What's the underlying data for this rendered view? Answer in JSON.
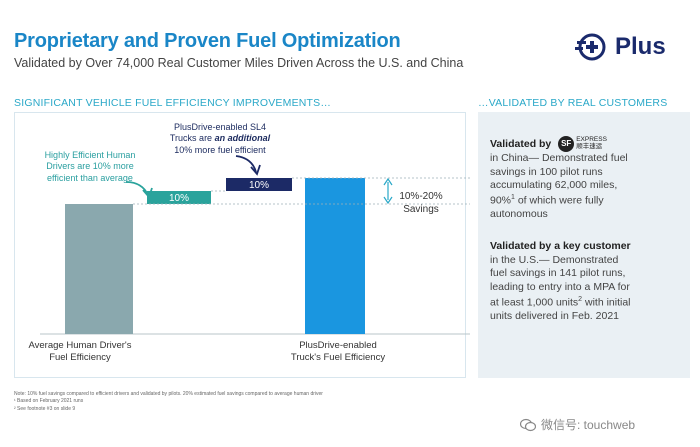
{
  "header": {
    "title": "Proprietary and Proven Fuel Optimization",
    "subtitle": "Validated by Over 74,000 Real Customer Miles Driven Across the U.S. and China",
    "logo_text": "Plus"
  },
  "sections": {
    "left": "SIGNIFICANT VEHICLE FUEL EFFICIENCY IMPROVEMENTS…",
    "right": "…VALIDATED BY REAL CUSTOMERS"
  },
  "chart_data": {
    "type": "bar",
    "title": "",
    "xlabel": "",
    "ylabel": "",
    "categories": [
      "Average Human Driver's Fuel Efficiency",
      "Highly Efficient Human Drivers",
      "PlusDrive-enabled SL4 Trucks",
      "PlusDrive-enabled Truck's Fuel Efficiency"
    ],
    "bars": [
      {
        "kind": "base",
        "start": 0,
        "end": 100,
        "label": "",
        "color": "#8aa8ae"
      },
      {
        "kind": "increment",
        "start": 100,
        "end": 110,
        "label": "10%",
        "color": "#2aa39c"
      },
      {
        "kind": "increment",
        "start": 110,
        "end": 120,
        "label": "10%",
        "color": "#1c2a66"
      },
      {
        "kind": "total",
        "start": 0,
        "end": 120,
        "label": "",
        "color": "#1a96e0"
      }
    ],
    "savings_range": "10%-20%",
    "savings_label": "Savings",
    "bar_labels": {
      "avg_line1": "Average Human Driver's",
      "avg_line2": "Fuel Efficiency",
      "plus_line1": "PlusDrive-enabled",
      "plus_line2": "Truck's Fuel Efficiency"
    },
    "annotations": {
      "human_line1": "Highly Efficient Human",
      "human_line2": "Drivers are 10% more",
      "human_line3": "efficient than average",
      "sl4_line1": "PlusDrive-enabled SL4",
      "sl4_line2a": "Trucks are ",
      "sl4_line2b": "an additional",
      "sl4_line3": "10% more fuel efficient"
    },
    "ylim": [
      0,
      130
    ],
    "grid": false
  },
  "validation": {
    "block1": {
      "heading": "Validated by",
      "sf_letters": "SF",
      "sf_en": "EXPRESS",
      "sf_cn": "顺丰速运",
      "line1": "in China— Demonstrated fuel",
      "line2": "savings in 100 pilot runs",
      "line3": "accumulating 62,000 miles,",
      "line4a": "90%",
      "line4sup": "1",
      "line4b": " of which were fully",
      "line5": "autonomous"
    },
    "block2": {
      "heading": "Validated by a key customer",
      "line1": "in the U.S.— Demonstrated",
      "line2": "fuel savings in 141 pilot runs,",
      "line3": "leading to entry into a MPA for",
      "line4a": "at least 1,000 units",
      "line4sup": "2",
      "line4b": " with initial",
      "line5": "units delivered in Feb. 2021"
    }
  },
  "footnotes": {
    "note": "Note: 10% fuel savings compared to efficient drivers and validated by pilots. 20% estimated fuel savings compared to average human driver",
    "fn1": "¹ Based on February 2021 runs",
    "fn2": "² See footnote #3 on slide 9"
  },
  "watermark": {
    "text": "微信号: touchweb"
  },
  "colors": {
    "title_blue": "#1a86c7",
    "section_cyan": "#2aa8c8",
    "navy": "#1c2a66",
    "teal": "#2aa39c",
    "bright_blue": "#1a96e0",
    "grey_bar": "#8aa8ae"
  }
}
